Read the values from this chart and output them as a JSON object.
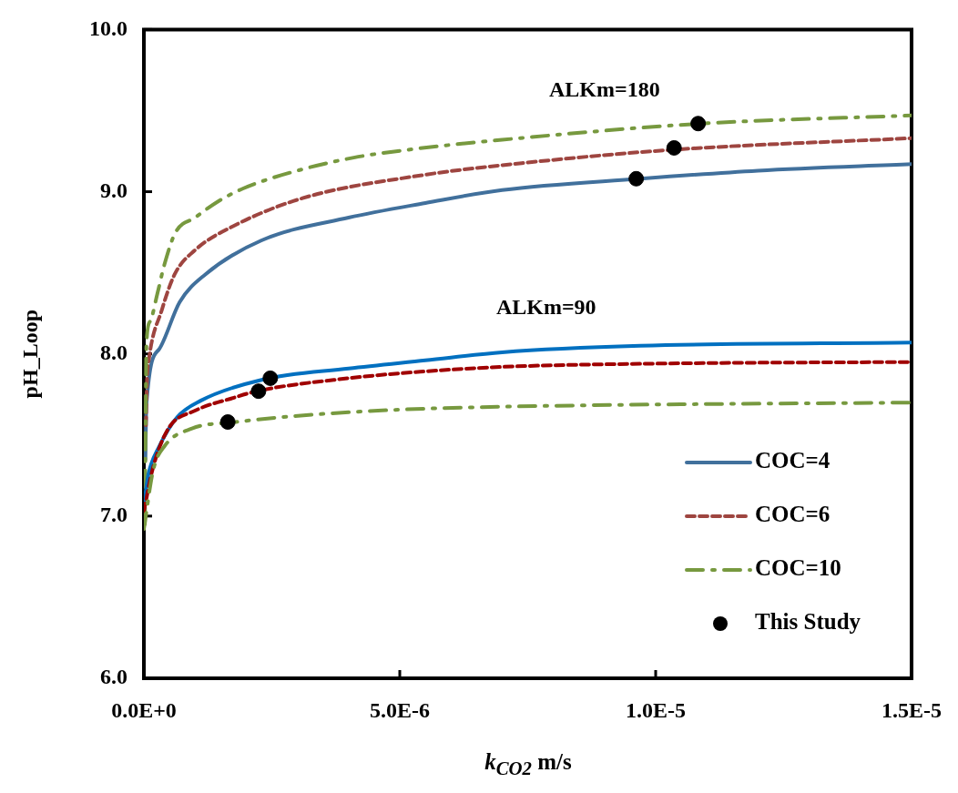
{
  "chart_data": {
    "type": "line",
    "xlabel": "k$_{CO2}$ m/s",
    "ylabel": "pH_Loop",
    "xlim": [
      0,
      1.5e-05
    ],
    "xticks": [
      {
        "value": 0,
        "label": "0.0E+0"
      },
      {
        "value": 5e-06,
        "label": "5.0E-6"
      },
      {
        "value": 1e-05,
        "label": "1.0E-5"
      },
      {
        "value": 1.5e-05,
        "label": "1.5E-5"
      }
    ],
    "ylim": [
      6,
      10
    ],
    "yticks": [
      {
        "value": 6,
        "label": "6.0"
      },
      {
        "value": 7,
        "label": "7.0"
      },
      {
        "value": 8,
        "label": "8.0"
      },
      {
        "value": 9,
        "label": "9.0"
      },
      {
        "value": 10,
        "label": "10.0"
      }
    ],
    "grid": false,
    "legend": "bottom right",
    "annotations": [
      "ALKm=180",
      "ALKm=90"
    ],
    "series": [
      {
        "name": "COC=4",
        "line_style": "solid",
        "color": "#41709c",
        "x": [
          3e-08,
          5e-08,
          3e-07,
          7e-07,
          1.2e-06,
          2.3e-06,
          4e-06,
          5.5e-06,
          7e-06,
          9.7e-06,
          1.2e-05,
          1.5e-05
        ],
        "values": [
          7.35,
          7.69,
          8.03,
          8.32,
          8.49,
          8.7,
          8.84,
          8.93,
          9.01,
          9.08,
          9.13,
          9.17
        ]
      },
      {
        "name": "COC=6",
        "line_style": "dashed",
        "color": "#9e4540",
        "x": [
          4e-08,
          6e-08,
          1e-07,
          3.5e-07,
          6e-07,
          1e-06,
          1.76e-06,
          3.1e-06,
          5.4e-06,
          7.5e-06,
          1.04e-05,
          1.5e-05
        ],
        "values": [
          7.56,
          7.83,
          7.97,
          8.27,
          8.49,
          8.64,
          8.79,
          8.96,
          9.1,
          9.18,
          9.26,
          9.33
        ]
      },
      {
        "name": "COC=10",
        "line_style": "dotted",
        "color": "#77993f",
        "x": [
          2e-08,
          5e-08,
          1.2e-07,
          2.7e-07,
          4e-07,
          6.2e-07,
          1e-06,
          1.45e-06,
          1.94e-06,
          3e-06,
          4.1e-06,
          5.2e-06,
          7e-06,
          1.09e-05,
          1.5e-05
        ],
        "values": [
          6.95,
          8.06,
          8.2,
          8.38,
          8.55,
          8.75,
          8.84,
          8.94,
          9.02,
          9.13,
          9.21,
          9.26,
          9.32,
          9.42,
          9.47
        ]
      },
      {
        "line_style": "solid",
        "color": "#0070c0",
        "x": [
          0,
          9e-08,
          3e-07,
          6.5e-07,
          1.1e-06,
          2.3e-06,
          4e-06,
          5.5e-06,
          7e-06,
          9.7e-06,
          1.5e-05
        ],
        "values": [
          7.07,
          7.26,
          7.43,
          7.61,
          7.71,
          7.84,
          7.91,
          7.96,
          8.01,
          8.05,
          8.07
        ]
      },
      {
        "line_style": "dashed",
        "color": "#a00000",
        "x": [
          0,
          1.8e-07,
          4.8e-07,
          1e-06,
          1.76e-06,
          2.2e-06,
          4e-06,
          5.4e-06,
          7e-06,
          1e-05,
          1.5e-05
        ],
        "values": [
          7.03,
          7.3,
          7.54,
          7.65,
          7.73,
          7.77,
          7.85,
          7.89,
          7.92,
          7.94,
          7.95
        ]
      },
      {
        "line_style": "dotted",
        "color": "#77993f",
        "x": [
          0,
          1.8e-07,
          4e-07,
          9.4e-07,
          1.8e-06,
          2.7e-06,
          4e-06,
          5.3e-06,
          8e-06,
          1.5e-05
        ],
        "values": [
          6.92,
          7.28,
          7.43,
          7.54,
          7.58,
          7.61,
          7.64,
          7.66,
          7.68,
          7.7
        ]
      },
      {
        "name": "This Study",
        "type": "scatter",
        "marker": "circle",
        "color": "#000000",
        "x": [
          1.64e-06,
          2.24e-06,
          2.47e-06,
          9.62e-06,
          1.036e-05,
          1.083e-05
        ],
        "values": [
          7.58,
          7.77,
          7.85,
          9.08,
          9.27,
          9.42
        ]
      }
    ]
  }
}
